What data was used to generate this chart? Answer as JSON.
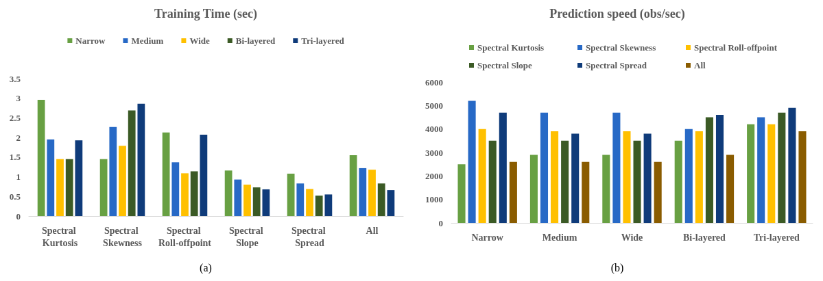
{
  "chart_data": [
    {
      "type": "bar",
      "title": "Training Time (sec)",
      "categories": [
        "Spectral Kurtosis",
        "Spectral Skewness",
        "Spectral Roll-offpoint",
        "Spectral Slope",
        "Spectral Spread",
        "All"
      ],
      "series": [
        {
          "name": "Narrow",
          "color": "#68a043",
          "values": [
            2.96,
            1.45,
            2.13,
            1.16,
            1.08,
            1.55
          ]
        },
        {
          "name": "Medium",
          "color": "#2769c6",
          "values": [
            1.95,
            2.27,
            1.37,
            0.93,
            0.83,
            1.22
          ]
        },
        {
          "name": "Wide",
          "color": "#ffc000",
          "values": [
            1.45,
            1.79,
            1.09,
            0.8,
            0.69,
            1.18
          ]
        },
        {
          "name": "Bi-layered",
          "color": "#3b5a25",
          "values": [
            1.45,
            2.69,
            1.14,
            0.73,
            0.52,
            0.83
          ]
        },
        {
          "name": "Tri-layered",
          "color": "#0f3b7a",
          "values": [
            1.93,
            2.86,
            2.07,
            0.68,
            0.55,
            0.66
          ]
        }
      ],
      "ylim": [
        0,
        3.5
      ],
      "yticks": [
        0,
        0.5,
        1,
        1.5,
        2,
        2.5,
        3,
        3.5
      ],
      "grid": false,
      "legend": "top",
      "annotations": [
        "(a)"
      ]
    },
    {
      "type": "bar",
      "title": "Prediction speed (obs/sec)",
      "categories": [
        "Narrow",
        "Medium",
        "Wide",
        "Bi-layered",
        "Tri-layered"
      ],
      "series": [
        {
          "name": "Spectral Kurtosis",
          "color": "#68a043",
          "values": [
            2500,
            2900,
            2900,
            3500,
            4200
          ]
        },
        {
          "name": "Spectral Skewness",
          "color": "#2769c6",
          "values": [
            5200,
            4700,
            4700,
            4000,
            4500
          ]
        },
        {
          "name": "Spectral Roll-offpoint",
          "color": "#ffc000",
          "values": [
            4000,
            3900,
            3900,
            3900,
            4200
          ]
        },
        {
          "name": "Spectral Slope",
          "color": "#3b5a25",
          "values": [
            3500,
            3500,
            3500,
            4500,
            4700
          ]
        },
        {
          "name": "Spectral Spread",
          "color": "#0f3b7a",
          "values": [
            4700,
            3800,
            3800,
            4600,
            4900
          ]
        },
        {
          "name": "All",
          "color": "#8a5c00",
          "values": [
            2600,
            2600,
            2600,
            2900,
            3900
          ]
        }
      ],
      "ylim": [
        0,
        6000
      ],
      "yticks": [
        0,
        1000,
        2000,
        3000,
        4000,
        5000,
        6000
      ],
      "grid": false,
      "legend": "top",
      "annotations": [
        "(b)"
      ]
    }
  ]
}
